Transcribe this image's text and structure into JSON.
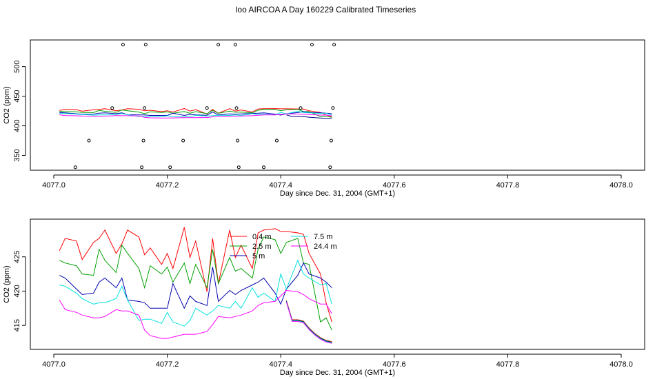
{
  "title": "loo AIRCOA A  Day 160229  Calibrated Timeseries",
  "chart_data": [
    {
      "type": "scatter",
      "xlabel": "Day since Dec. 31, 2004 (GMT+1)",
      "ylabel": "CO2 (ppm)",
      "xlim": [
        4077.0,
        4078.0
      ],
      "ylim": [
        325,
        545
      ],
      "xticks": [
        "4077.0",
        "4077.2",
        "4077.4",
        "4077.6",
        "4077.8",
        "4078.0"
      ],
      "yticks": [
        "350",
        "400",
        "450",
        "500"
      ],
      "x": [
        4077.01,
        4077.02,
        4077.04,
        4077.05,
        4077.07,
        4077.08,
        4077.09,
        4077.11,
        4077.12,
        4077.13,
        4077.15,
        4077.16,
        4077.17,
        4077.19,
        4077.2,
        4077.21,
        4077.23,
        4077.24,
        4077.25,
        4077.27,
        4077.28,
        4077.29,
        4077.31,
        4077.32,
        4077.33,
        4077.35,
        4077.36,
        4077.37,
        4077.39,
        4077.4,
        4077.41,
        4077.43,
        4077.44,
        4077.45,
        4077.47,
        4077.48,
        4077.49
      ],
      "outlier_points": [
        [
          4077.038,
          330
        ],
        [
          4077.062,
          375
        ],
        [
          4077.103,
          430
        ],
        [
          4077.122,
          537
        ],
        [
          4077.155,
          330
        ],
        [
          4077.158,
          375
        ],
        [
          4077.16,
          430
        ],
        [
          4077.162,
          537
        ],
        [
          4077.205,
          330
        ],
        [
          4077.228,
          375
        ],
        [
          4077.27,
          430
        ],
        [
          4077.29,
          537
        ],
        [
          4077.32,
          537
        ],
        [
          4077.322,
          430
        ],
        [
          4077.324,
          375
        ],
        [
          4077.326,
          330
        ],
        [
          4077.37,
          330
        ],
        [
          4077.393,
          375
        ],
        [
          4077.435,
          430
        ],
        [
          4077.455,
          537
        ],
        [
          4077.487,
          330
        ],
        [
          4077.489,
          375
        ],
        [
          4077.492,
          430
        ],
        [
          4077.494,
          537
        ]
      ]
    },
    {
      "type": "line",
      "xlabel": "Day since Dec. 31, 2004 (GMT+1)",
      "ylabel": "CO2 (ppm)",
      "xlim": [
        4077.0,
        4078.0
      ],
      "ylim": [
        411.5,
        430.5
      ],
      "xticks": [
        "4077.0",
        "4077.2",
        "4077.4",
        "4077.6",
        "4077.8",
        "4078.0"
      ],
      "yticks": [
        "415",
        "420",
        "425"
      ],
      "legend": "top-center",
      "x": [
        4077.01,
        4077.02,
        4077.04,
        4077.05,
        4077.07,
        4077.08,
        4077.09,
        4077.11,
        4077.12,
        4077.13,
        4077.15,
        4077.16,
        4077.17,
        4077.19,
        4077.2,
        4077.21,
        4077.23,
        4077.24,
        4077.25,
        4077.27,
        4077.28,
        4077.29,
        4077.31,
        4077.32,
        4077.33,
        4077.35,
        4077.36,
        4077.37,
        4077.39,
        4077.4,
        4077.41,
        4077.43,
        4077.44,
        4077.45,
        4077.47,
        4077.48,
        4077.49
      ],
      "series": [
        {
          "name": "0.4 m",
          "color": "#ff0000",
          "values": [
            425.9,
            427.7,
            427.3,
            424.6,
            427.1,
            427.7,
            428.9,
            425.5,
            426.9,
            428.9,
            427.9,
            425.3,
            426.3,
            423.9,
            425.5,
            423.3,
            429.3,
            424.9,
            427.3,
            419.9,
            427.7,
            421.1,
            428.9,
            424.9,
            426.7,
            423.3,
            428.5,
            428.9,
            429.1,
            428.7,
            428.7,
            428.5,
            428.3,
            425.5,
            422.5,
            418.3,
            415.5
          ]
        },
        {
          "name": "2.5 m",
          "color": "#00a000",
          "values": [
            424.5,
            424.1,
            423.7,
            422.5,
            422.3,
            426.1,
            424.5,
            422.7,
            426.7,
            425.5,
            423.3,
            420.5,
            423.7,
            422.5,
            423.5,
            421.3,
            424.1,
            421.1,
            423.9,
            420.5,
            426.1,
            421.1,
            424.9,
            422.9,
            423.3,
            421.9,
            426.1,
            427.9,
            427.5,
            425.5,
            427.1,
            427.7,
            424.1,
            423.9,
            415.5,
            416.1,
            414.3
          ]
        },
        {
          "name": "5 m",
          "color": "#0000b0",
          "values": [
            422.3,
            421.9,
            420.3,
            419.5,
            419.7,
            421.3,
            421.9,
            420.5,
            421.9,
            418.7,
            418.5,
            418.3,
            417.5,
            417.5,
            417.5,
            421.1,
            417.5,
            419.3,
            418.5,
            417.9,
            423.5,
            418.5,
            420.1,
            419.5,
            420.1,
            420.9,
            421.3,
            421.9,
            419.7,
            418.1,
            420.3,
            422.3,
            424.1,
            422.5,
            421.9,
            421.3,
            420.5
          ]
        },
        {
          "name": "7.5 m",
          "color": "#00e0e0",
          "values": [
            420.9,
            420.7,
            419.7,
            418.9,
            418.1,
            418.3,
            418.3,
            418.9,
            420.7,
            418.7,
            415.7,
            415.9,
            415.9,
            415.3,
            416.9,
            415.5,
            414.9,
            415.7,
            417.5,
            416.5,
            417.1,
            417.9,
            417.5,
            418.5,
            417.5,
            420.5,
            419.1,
            419.7,
            418.5,
            422.5,
            420.3,
            424.5,
            422.5,
            421.9,
            420.9,
            421.1,
            418.1
          ]
        },
        {
          "name": "24.4 m",
          "color": "#ff00ff",
          "values": [
            418.7,
            417.3,
            416.9,
            416.5,
            416.1,
            416.1,
            416.3,
            417.3,
            417.1,
            417.1,
            416.5,
            414.3,
            413.5,
            413.1,
            413.1,
            413.3,
            413.7,
            413.7,
            413.7,
            414.1,
            415.1,
            416.3,
            416.1,
            416.3,
            416.5,
            417.1,
            417.9,
            418.3,
            418.5,
            419.3,
            420.1,
            419.9,
            419.5,
            418.9,
            418.1,
            418.1,
            416.7
          ]
        }
      ],
      "tail_x": [
        4077.41,
        4077.42,
        4077.43,
        4077.44,
        4077.45,
        4077.46,
        4077.47,
        4077.48,
        4077.49
      ],
      "tail_values": [
        418.5,
        415.7,
        415.7,
        415.5,
        414.5,
        413.7,
        413.1,
        412.7,
        412.5
      ]
    }
  ]
}
